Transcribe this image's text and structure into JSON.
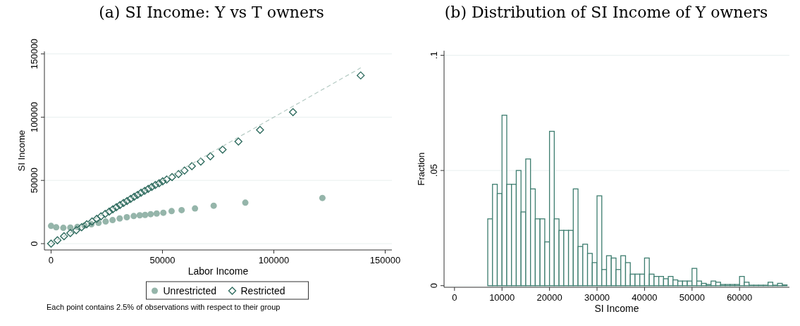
{
  "chart_data": [
    {
      "type": "scatter",
      "title": "(a) SI Income: Y vs T owners",
      "xlabel": "Labor Income",
      "ylabel": "SI Income",
      "xlim": [
        -3000,
        153000
      ],
      "ylim": [
        -5000,
        152000
      ],
      "xticks": [
        0,
        50000,
        100000,
        150000
      ],
      "yticks": [
        0,
        50000,
        100000,
        150000
      ],
      "grid": "y",
      "legend": "bottom",
      "annotations": [
        "Each point contains 2.5% of observations with respect to their group"
      ],
      "series": [
        {
          "name": "Unrestricted",
          "color": "#95b5aa",
          "marker": "circle",
          "x": [
            0,
            2300,
            5500,
            8650,
            11800,
            15000,
            18100,
            21300,
            24500,
            27600,
            30800,
            34000,
            37100,
            39800,
            42200,
            44700,
            47400,
            50400,
            54100,
            58600,
            64600,
            73000,
            87200,
            121800
          ],
          "values": [
            14000,
            12900,
            12500,
            12700,
            13200,
            14300,
            15300,
            16400,
            17500,
            18600,
            19900,
            20900,
            21800,
            22400,
            22700,
            23300,
            23800,
            24400,
            25700,
            26500,
            27800,
            30000,
            32400,
            36100
          ]
        },
        {
          "name": "Restricted",
          "color": "#2e6b5e",
          "marker": "diamond",
          "x": [
            0,
            2850,
            5800,
            8650,
            11300,
            13700,
            16000,
            18400,
            20500,
            22400,
            24300,
            26100,
            27700,
            29300,
            30900,
            32500,
            34100,
            35700,
            37300,
            38800,
            40400,
            42000,
            43600,
            45200,
            46800,
            48500,
            50100,
            51900,
            54300,
            57200,
            59900,
            63200,
            67200,
            71500,
            77000,
            84100,
            93800,
            108600,
            139000
          ],
          "values": [
            0,
            2600,
            5800,
            8400,
            10600,
            13000,
            15300,
            17500,
            19600,
            21600,
            23500,
            25400,
            27100,
            28800,
            30500,
            32100,
            33700,
            35400,
            37000,
            38500,
            40200,
            41700,
            43300,
            44800,
            46300,
            47800,
            49300,
            50700,
            52600,
            55000,
            57800,
            61200,
            64900,
            69000,
            74300,
            80700,
            89900,
            104000,
            133000
          ]
        },
        {
          "type": "line",
          "color": "#b4cac3",
          "marker": "none",
          "line_style": "dashed",
          "x": [
            0,
            139000
          ],
          "values": [
            0,
            139000
          ]
        }
      ]
    },
    {
      "type": "histogram",
      "title": "(b) Distribution of SI Income of Y owners",
      "xlabel": "SI Income",
      "ylabel": "Fraction",
      "color": "#3d7d6f",
      "xlim": [
        -2200,
        70500
      ],
      "ylim": [
        -0.0007,
        0.102
      ],
      "xticks": [
        0,
        10000,
        20000,
        30000,
        40000,
        50000,
        60000
      ],
      "yticks": [
        0,
        {
          "value": 0.05,
          "label": ".05"
        },
        {
          "value": 0.1,
          "label": ".1"
        }
      ],
      "grid": "y",
      "bins": [
        7000,
        8000,
        9000,
        10000,
        11000,
        12000,
        13000,
        14000,
        15000,
        16000,
        17000,
        18000,
        19000,
        20000,
        21000,
        22000,
        23000,
        24000,
        25000,
        26000,
        27000,
        28000,
        29000,
        30000,
        31000,
        32000,
        33000,
        34000,
        35000,
        36000,
        37000,
        38000,
        39000,
        40000,
        41000,
        42000,
        43000,
        44000,
        45000,
        46000,
        47000,
        48000,
        49000,
        50000,
        51000,
        52000,
        53000,
        54000,
        55000,
        56000,
        57000,
        58000,
        59000,
        60000,
        61000,
        62000,
        63000,
        64000,
        65000,
        66000,
        67000,
        68000,
        69000,
        70000
      ],
      "values": [
        0.029,
        0.044,
        0.04,
        0.074,
        0.044,
        0.044,
        0.05,
        0.032,
        0.055,
        0.042,
        0.029,
        0.029,
        0.019,
        0.067,
        0.029,
        0.024,
        0.024,
        0.024,
        0.042,
        0.017,
        0.018,
        0.014,
        0.01,
        0.039,
        0.007,
        0.013,
        0.012,
        0.007,
        0.013,
        0.01,
        0.005,
        0.005,
        0.005,
        0.012,
        0.005,
        0.004,
        0.004,
        0.003,
        0.004,
        0.0025,
        0.002,
        0.002,
        0.002,
        0.0075,
        0.002,
        0.001,
        0.0005,
        0.002,
        0.0015,
        0.0005,
        0.0005,
        0.0005,
        0.0005,
        0.004,
        0.0015,
        0.0002,
        0.0002,
        0.0002,
        0.0002,
        0.0015,
        0.0002,
        0.001,
        0.0003
      ]
    }
  ]
}
